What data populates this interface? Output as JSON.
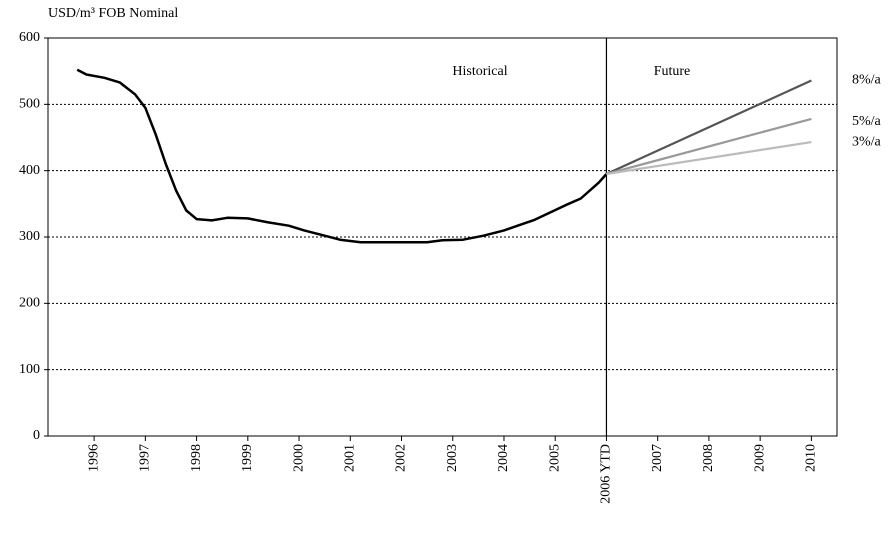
{
  "chart_data": {
    "type": "line",
    "y_label": "USD/m³ FOB Nominal",
    "annotations": [
      "Historical",
      "Future"
    ],
    "xlim": [
      1995.1,
      2010.5
    ],
    "xticks": [
      1996,
      1997,
      1998,
      1999,
      2000,
      2001,
      2002,
      2003,
      2004,
      2005,
      {
        "value": 2006,
        "label": "2006 YTD"
      },
      2007,
      2008,
      2009,
      2010
    ],
    "ylim": [
      0,
      600
    ],
    "yticks": [
      0,
      100,
      200,
      300,
      400,
      500,
      600
    ],
    "grid": true,
    "series": [
      {
        "name": "Historical",
        "color": "#000000",
        "x": [
          1995.67,
          1995.85,
          1996.2,
          1996.5,
          1996.8,
          1997.0,
          1997.2,
          1997.4,
          1997.6,
          1997.8,
          1998.0,
          1998.3,
          1998.6,
          1999.0,
          1999.4,
          1999.8,
          2000.1,
          2000.5,
          2000.8,
          2001.2,
          2001.6,
          2002.0,
          2002.5,
          2002.8,
          2003.2,
          2003.6,
          2004.0,
          2004.3,
          2004.6,
          2004.9,
          2005.2,
          2005.5,
          2005.85,
          2006.0
        ],
        "values": [
          552,
          545,
          540,
          533,
          515,
          495,
          455,
          410,
          370,
          340,
          327,
          325,
          329,
          328,
          322,
          317,
          310,
          302,
          296,
          292,
          292,
          292,
          292,
          295,
          296,
          302,
          310,
          318,
          326,
          337,
          348,
          358,
          382,
          395
        ]
      },
      {
        "name": "8%/a",
        "color": "#555555",
        "x": [
          2006,
          2010
        ],
        "values": [
          395,
          536
        ]
      },
      {
        "name": "5%/a",
        "color": "#999999",
        "x": [
          2006,
          2010
        ],
        "values": [
          395,
          478
        ]
      },
      {
        "name": "3%/a",
        "color": "#bbbbbb",
        "x": [
          2006,
          2010
        ],
        "values": [
          395,
          443
        ]
      }
    ]
  }
}
